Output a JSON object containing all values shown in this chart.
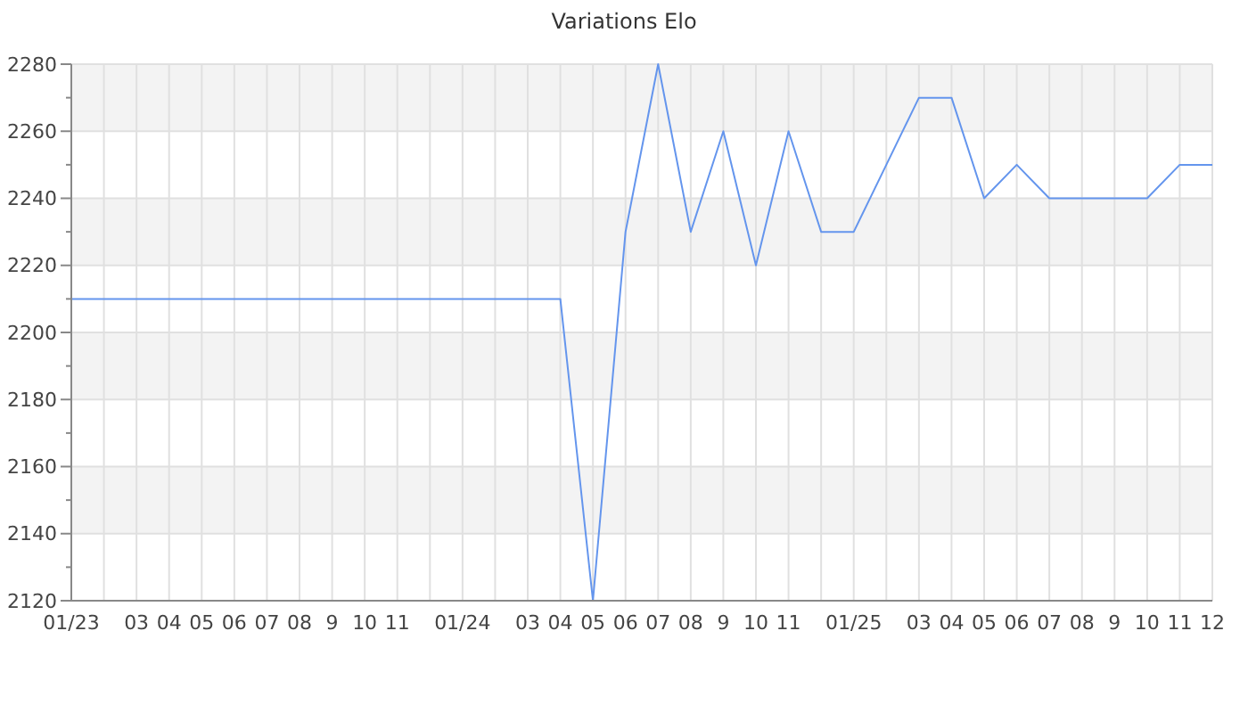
{
  "chart_data": {
    "type": "line",
    "title": "Variations Elo",
    "categories": [
      "01/23",
      null,
      "03",
      "04",
      "05",
      "06",
      "07",
      "08",
      "9",
      "10",
      "11",
      null,
      "01/24",
      null,
      "03",
      "04",
      "05",
      "06",
      "07",
      "08",
      "9",
      "10",
      "11",
      null,
      "01/25",
      null,
      "03",
      "04",
      "05",
      "06",
      "07",
      "08",
      "9",
      "10",
      "11",
      "12"
    ],
    "series": [
      {
        "color": "#6495ed",
        "values": [
          2210,
          2210,
          2210,
          2210,
          2210,
          2210,
          2210,
          2210,
          2210,
          2210,
          2210,
          2210,
          2210,
          2210,
          2210,
          2210,
          2120,
          2230,
          2280,
          2230,
          2260,
          2220,
          2260,
          2230,
          2230,
          2250,
          2270,
          2270,
          2240,
          2250,
          2240,
          2240,
          2240,
          2240,
          2250,
          2250
        ]
      }
    ],
    "ylim": [
      2120,
      2280
    ],
    "yticks": [
      2120,
      {
        "value": 2130,
        "label": null
      },
      2140,
      {
        "value": 2150,
        "label": null
      },
      2160,
      {
        "value": 2170,
        "label": null
      },
      2180,
      {
        "value": 2190,
        "label": null
      },
      2200,
      {
        "value": 2210,
        "label": null
      },
      2220,
      {
        "value": 2230,
        "label": null
      },
      2240,
      {
        "value": 2250,
        "label": null
      },
      2260,
      {
        "value": 2270,
        "label": null
      },
      2280
    ],
    "grid": true,
    "marker": "none",
    "line_style": "solid"
  }
}
